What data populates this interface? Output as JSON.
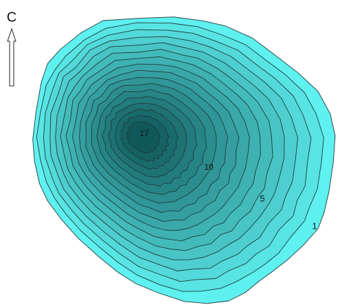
{
  "north_label": "C",
  "contour_labels": [
    {
      "text": "17"
    },
    {
      "text": "10"
    },
    {
      "text": "5"
    },
    {
      "text": "1"
    }
  ]
}
